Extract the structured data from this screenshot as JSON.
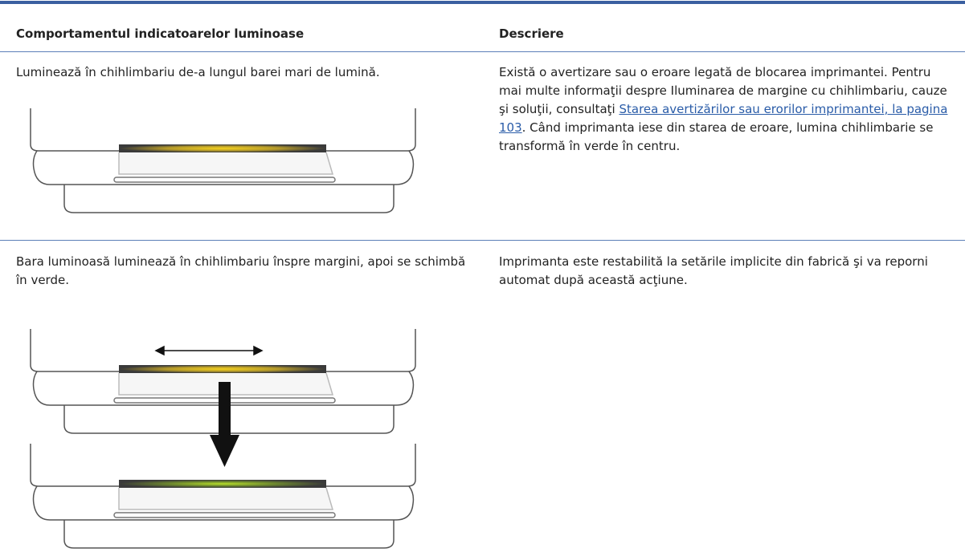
{
  "table": {
    "header": [
      "Comportamentul indicatoarelor luminoase",
      "Descriere"
    ],
    "rows": [
      {
        "behavior": "Luminează în chihlimbariu de-a lungul barei mari de lumină.",
        "description": {
          "before": "Există o avertizare sau o eroare legată de blocarea imprimantei. Pentru mai multe informaţii despre Iluminarea de margine cu chihlimbariu, cauze şi soluţii, consultaţi ",
          "link": "Starea avertizărilor sau erorilor imprimantei, la pagina 103",
          "after": ". Când imprimanta iese din starea de eroare, lumina chihlimbarie se transformă în verde în centru."
        }
      },
      {
        "behavior": "Bara luminoasă luminează în chihlimbariu înspre margini, apoi se schimbă în verde.",
        "description": "Imprimanta este restabilită la setările implicite din fabrică şi va reporni automat după această acţiune."
      }
    ]
  }
}
